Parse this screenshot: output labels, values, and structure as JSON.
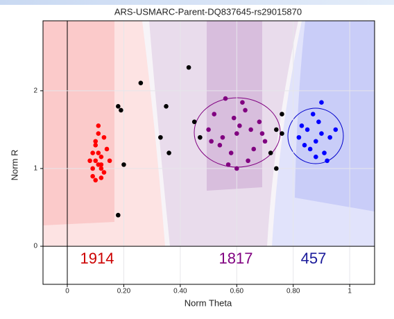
{
  "chart_data": {
    "type": "scatter",
    "title": "ARS-USMARC-Parent-DQ837645-rs29015870",
    "xlabel": "Norm Theta",
    "ylabel": "Norm R",
    "xlim": [
      -0.086,
      1.088
    ],
    "ylim": [
      -0.49,
      2.9
    ],
    "xticks": [
      0,
      {
        "value": 0.2,
        "label": "0.20"
      },
      {
        "value": 0.4,
        "label": "0.40"
      },
      {
        "value": 0.6,
        "label": "0.60"
      },
      {
        "value": 0.8,
        "label": "0.80"
      },
      1
    ],
    "yticks": [
      0,
      1,
      2
    ],
    "series": [
      {
        "color": "#ff0000",
        "x": [
          0.09,
          0.1,
          0.11,
          0.12,
          0.13,
          0.1,
          0.11,
          0.09,
          0.12,
          0.14,
          0.08,
          0.1,
          0.13,
          0.11,
          0.12,
          0.09,
          0.15,
          0.1,
          0.12,
          0.11
        ],
        "values": [
          1.0,
          1.1,
          1.2,
          1.05,
          0.95,
          1.3,
          1.45,
          0.9,
          1.15,
          1.25,
          1.1,
          0.85,
          1.4,
          1.55,
          1.0,
          1.2,
          1.1,
          1.35,
          0.88,
          1.05
        ]
      },
      {
        "color": "#800080",
        "x": [
          0.5,
          0.55,
          0.6,
          0.65,
          0.7,
          0.52,
          0.58,
          0.62,
          0.68,
          0.56,
          0.64,
          0.6,
          0.54,
          0.66,
          0.59,
          0.61,
          0.57,
          0.63,
          0.69,
          0.51
        ],
        "values": [
          1.5,
          1.4,
          1.45,
          1.5,
          1.35,
          1.7,
          1.2,
          1.85,
          1.6,
          1.9,
          1.1,
          1.0,
          1.3,
          1.25,
          1.65,
          1.55,
          1.05,
          1.75,
          1.45,
          1.35
        ]
      },
      {
        "color": "#0000ff",
        "x": [
          0.82,
          0.85,
          0.88,
          0.9,
          0.93,
          0.86,
          0.89,
          0.91,
          0.84,
          0.95,
          0.87,
          0.92,
          0.83,
          0.9,
          0.88
        ],
        "values": [
          1.4,
          1.5,
          1.35,
          1.45,
          1.4,
          1.25,
          1.6,
          1.2,
          1.3,
          1.5,
          1.7,
          1.1,
          1.55,
          1.85,
          1.15
        ]
      },
      {
        "color": "#000000",
        "x": [
          0.18,
          0.19,
          0.2,
          0.18,
          0.26,
          0.33,
          0.36,
          0.43,
          0.35,
          0.72,
          0.74,
          0.76,
          0.45,
          0.47,
          0.74,
          0.76
        ],
        "values": [
          1.8,
          1.75,
          1.05,
          0.4,
          2.1,
          1.4,
          1.2,
          2.3,
          1.8,
          1.2,
          1.0,
          1.7,
          1.6,
          1.4,
          1.5,
          1.45
        ]
      }
    ],
    "annotations": [
      {
        "text": "1914",
        "color": "#cc0000"
      },
      {
        "text": "1817",
        "color": "#800080"
      },
      {
        "text": "457",
        "color": "#1a1a9a"
      }
    ]
  }
}
